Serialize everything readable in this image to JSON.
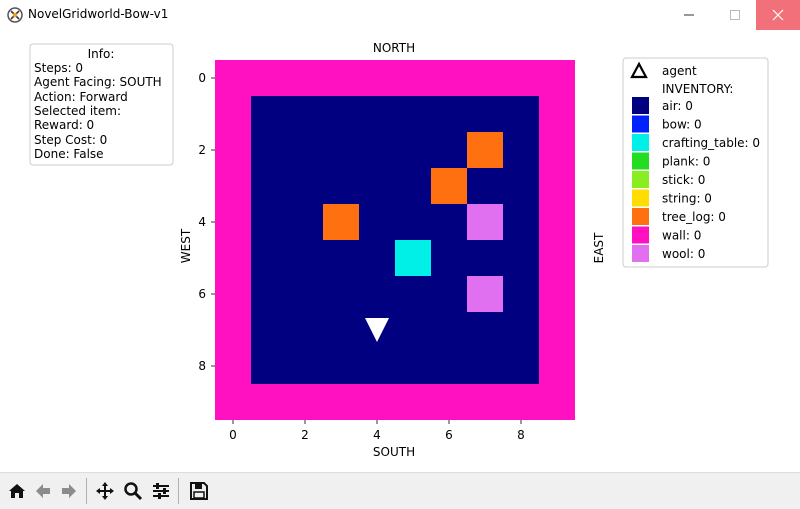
{
  "window": {
    "title": "NovelGridworld-Bow-v1"
  },
  "info_box": {
    "header": "Info:",
    "lines": [
      "Steps: 0",
      "Agent Facing: SOUTH",
      "Action: Forward",
      "Selected item:",
      "Reward: 0",
      "Step Cost: 0",
      "Done: False"
    ]
  },
  "plot": {
    "title": "NORTH",
    "xlabel": "SOUTH",
    "ylabel": "WEST",
    "right_label": "EAST",
    "x_ticks": [
      "0",
      "2",
      "4",
      "6",
      "8"
    ],
    "y_ticks": [
      "0",
      "2",
      "4",
      "6",
      "8"
    ]
  },
  "legend": {
    "agent_label": "agent",
    "header": "INVENTORY:",
    "items": [
      {
        "label": "air: 0",
        "color": "#000080"
      },
      {
        "label": "bow: 0",
        "color": "#0022ff"
      },
      {
        "label": "crafting_table: 0",
        "color": "#00f0e8"
      },
      {
        "label": "plank: 0",
        "color": "#22dd22"
      },
      {
        "label": "stick: 0",
        "color": "#88ee22"
      },
      {
        "label": "string: 0",
        "color": "#ffdd00"
      },
      {
        "label": "tree_log: 0",
        "color": "#ff7010"
      },
      {
        "label": "wall: 0",
        "color": "#ff10c0"
      },
      {
        "label": "wool: 0",
        "color": "#e070f0"
      }
    ]
  },
  "grid": {
    "size": 10,
    "colors": {
      "air": "#000080",
      "wall": "#ff10c0",
      "tree_log": "#ff7010",
      "crafting_table": "#00f0e8",
      "wool": "#e070f0"
    },
    "objects": [
      {
        "type": "tree_log",
        "row": 2,
        "col": 7
      },
      {
        "type": "tree_log",
        "row": 3,
        "col": 6
      },
      {
        "type": "tree_log",
        "row": 4,
        "col": 3
      },
      {
        "type": "wool",
        "row": 4,
        "col": 7
      },
      {
        "type": "crafting_table",
        "row": 5,
        "col": 5
      },
      {
        "type": "wool",
        "row": 6,
        "col": 7
      }
    ],
    "agent": {
      "row": 7,
      "col": 4,
      "facing": "SOUTH",
      "color": "#ffffff"
    }
  },
  "toolbar": {
    "buttons": [
      "home-icon",
      "back-icon",
      "forward-icon",
      "pan-icon",
      "zoom-icon",
      "configure-icon",
      "save-icon"
    ]
  }
}
